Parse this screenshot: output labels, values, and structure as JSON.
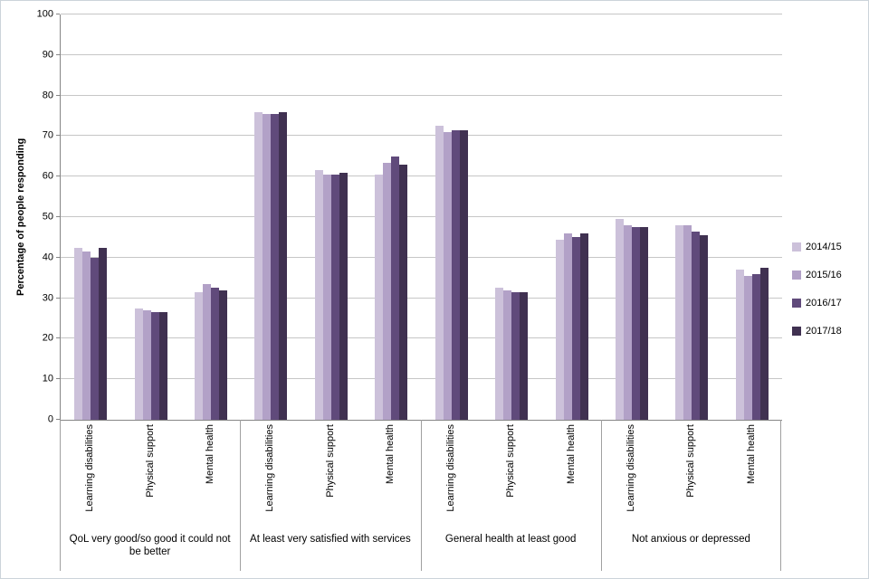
{
  "chart_data": {
    "type": "bar",
    "title": "",
    "ylabel": "Percentage of people responding",
    "xlabel": "",
    "ylim": [
      0,
      100
    ],
    "ytick_step": 10,
    "grid": true,
    "legend_position": "right",
    "series_names": [
      "2014/15",
      "2015/16",
      "2016/17",
      "2017/18"
    ],
    "series_colors": [
      "#ccc1da",
      "#b2a1c7",
      "#604a7b",
      "#403151"
    ],
    "groups": [
      {
        "label": "QoL very good/so good it could not be better",
        "clusters": [
          {
            "label": "Learning disabilities",
            "values": [
              42.5,
              41.5,
              40,
              42.5
            ]
          },
          {
            "label": "Physical support",
            "values": [
              27.5,
              27,
              26.5,
              26.5
            ]
          },
          {
            "label": "Mental health",
            "values": [
              31.5,
              33.5,
              32.5,
              32
            ]
          }
        ]
      },
      {
        "label": "At least very satisfied with services",
        "clusters": [
          {
            "label": "Learning disabilities",
            "values": [
              76,
              75.5,
              75.5,
              76
            ]
          },
          {
            "label": "Physical support",
            "values": [
              61.5,
              60.5,
              60.5,
              61
            ]
          },
          {
            "label": "Mental health",
            "values": [
              60.5,
              63.5,
              65,
              63
            ]
          }
        ]
      },
      {
        "label": "General health at least good",
        "clusters": [
          {
            "label": "Learning disabilities",
            "values": [
              72.5,
              71,
              71.5,
              71.5
            ]
          },
          {
            "label": "Physical support",
            "values": [
              32.5,
              32,
              31.5,
              31.5
            ]
          },
          {
            "label": "Mental health",
            "values": [
              44.5,
              46,
              45,
              46
            ]
          }
        ]
      },
      {
        "label": "Not anxious or depressed",
        "clusters": [
          {
            "label": "Learning disabilities",
            "values": [
              49.5,
              48,
              47.5,
              47.5
            ]
          },
          {
            "label": "Physical support",
            "values": [
              48,
              48,
              46.5,
              45.5
            ]
          },
          {
            "label": "Mental health",
            "values": [
              37,
              35.5,
              36,
              37.5
            ]
          }
        ]
      }
    ]
  }
}
